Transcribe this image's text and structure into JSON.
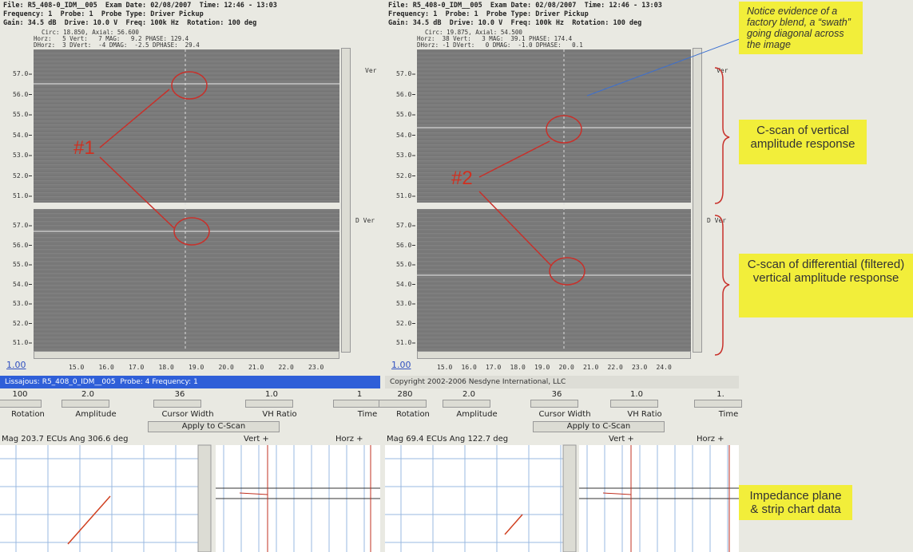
{
  "panels": [
    {
      "header": [
        "File: R5_408-0_IDM__005  Exam Date: 02/08/2007  Time: 12:46 - 13:03",
        "Frequency: 1  Probe: 1  Probe Type: Driver Pickup",
        "Gain: 34.5 dB  Drive: 10.0 V  Freq: 100k Hz  Rotation: 100 deg"
      ],
      "info": [
        "Circ: 18.850, Axial: 56.600",
        "Horz:   5 Vert:   7 MAG:   9.2 PHASE: 129.4",
        "DHorz:  3 DVert:  -4 DMAG:  -2.5 DPHASE:  29.4"
      ],
      "yticks": [
        "57.0",
        "56.0",
        "55.0",
        "54.0",
        "53.0",
        "52.0",
        "51.0"
      ],
      "xticks": [
        "15.0",
        "16.0",
        "17.0",
        "18.0",
        "19.0",
        "20.0",
        "21.0",
        "22.0",
        "23.0"
      ],
      "zoom": "1.00",
      "side_labels": [
        "Ver",
        "D Ver"
      ],
      "status": "Lissajous: R5_408_0_IDM__005  Probe: 4 Frequency: 1",
      "control_values": [
        "100",
        "2.0",
        "36",
        "1.0",
        "1"
      ],
      "control_labels": [
        "Rotation",
        "Amplitude",
        "Cursor Width",
        "VH Ratio",
        "Time"
      ],
      "button": "Apply to C-Scan",
      "mag": "Mag 203.7 ECUs Ang 306.6 deg",
      "strip_labels": [
        "Vert +",
        "Horz +"
      ],
      "marker": "#1"
    },
    {
      "header": [
        "File: R5_408-0_IDM__005  Exam Date: 02/08/2007  Time: 12:46 - 13:03",
        "Frequency: 1  Probe: 1  Probe Type: Driver Pickup",
        "Gain: 34.5 dB  Drive: 10.0 V  Freq: 100k Hz  Rotation: 100 deg"
      ],
      "info": [
        "Circ: 19.875, Axial: 54.500",
        "Horz:  38 Vert:   3 MAG:  39.1 PHASE: 174.4",
        "DHorz: -1 DVert:   0 DMAG:  -1.0 DPHASE:   0.1"
      ],
      "yticks": [
        "57.0",
        "56.0",
        "55.0",
        "54.0",
        "53.0",
        "52.0",
        "51.0"
      ],
      "xticks": [
        "15.0",
        "16.0",
        "17.0",
        "18.0",
        "19.0",
        "20.0",
        "21.0",
        "22.0",
        "23.0",
        "24.0"
      ],
      "zoom": "1.00",
      "side_labels": [
        "Ver",
        "D Ver"
      ],
      "status": "Copyright 2002-2006 Nesdyne International, LLC",
      "control_values": [
        "280",
        "2.0",
        "36",
        "1.0",
        "1."
      ],
      "control_labels": [
        "Rotation",
        "Amplitude",
        "Cursor Width",
        "VH Ratio",
        "Time"
      ],
      "button": "Apply to C-Scan",
      "mag": "Mag 69.4 ECUs Ang 122.7 deg",
      "strip_labels": [
        "Vert +",
        "Horz +"
      ],
      "marker": "#2"
    }
  ],
  "annotations": [
    "Notice evidence of  a factory blend, a “swath” going diagonal across the image",
    "C-scan of vertical amplitude response",
    "C-scan of differential (filtered) vertical amplitude response",
    "Impedance plane & strip chart data"
  ]
}
